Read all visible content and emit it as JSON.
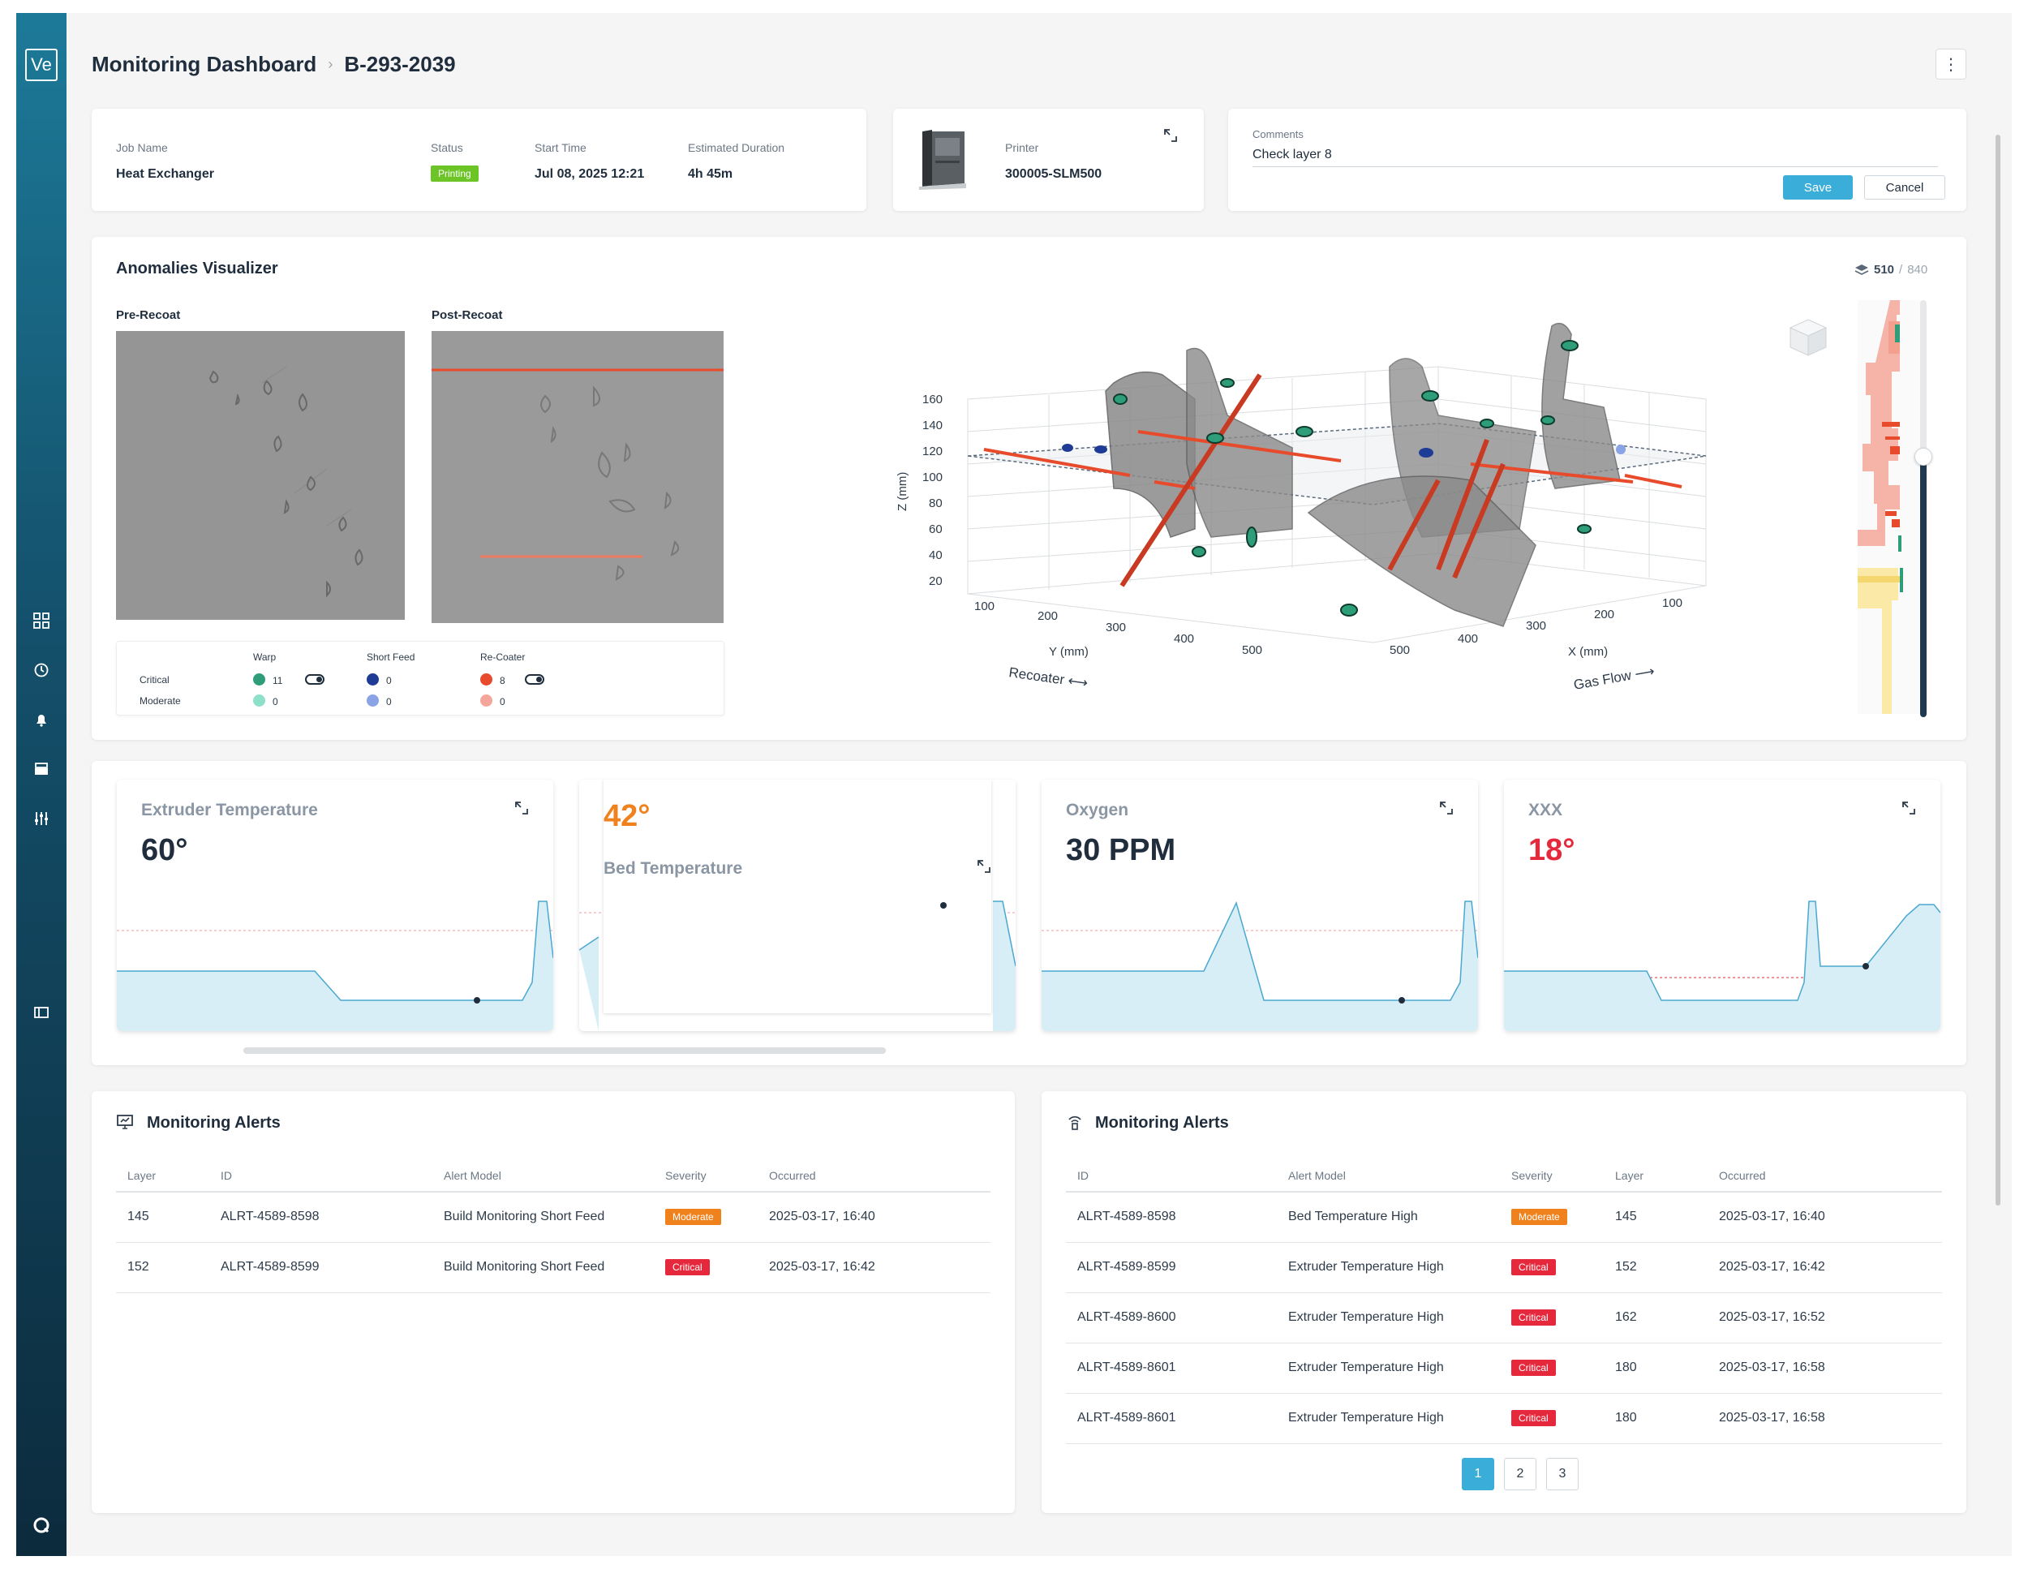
{
  "app": {
    "logo": "Ve"
  },
  "header": {
    "title": "Monitoring Dashboard",
    "separator": "›",
    "job_id": "B-293-2039",
    "more": "⋮"
  },
  "job": {
    "name_label": "Job Name",
    "name": "Heat Exchanger",
    "status_label": "Status",
    "status": "Printing",
    "start_label": "Start Time",
    "start": "Jul 08, 2025 12:21",
    "duration_label": "Estimated Duration",
    "duration": "4h 45m"
  },
  "printer": {
    "label": "Printer",
    "name": "300005-SLM500"
  },
  "comments": {
    "label": "Comments",
    "value": "Check layer 8",
    "save": "Save",
    "cancel": "Cancel"
  },
  "visualizer": {
    "title": "Anomalies Visualizer",
    "layer_current": "510",
    "layer_sep": " / ",
    "layer_total": "840",
    "pre_label": "Pre-Recoat",
    "post_label": "Post-Recoat",
    "legend": {
      "columns": [
        "Warp",
        "Short Feed",
        "Re-Coater"
      ],
      "rows": [
        {
          "label": "Critical",
          "counts": [
            "11",
            "0",
            "8"
          ]
        },
        {
          "label": "Moderate",
          "counts": [
            "0",
            "0",
            "0"
          ]
        }
      ]
    },
    "axes": {
      "z_label": "Z (mm)",
      "z_ticks": [
        "160",
        "140",
        "120",
        "100",
        "80",
        "60",
        "40",
        "20"
      ],
      "y_label": "Y (mm)",
      "y_ticks": [
        "100",
        "200",
        "300",
        "400",
        "500"
      ],
      "x_label": "X (mm)",
      "x_ticks": [
        "500",
        "400",
        "300",
        "200",
        "100"
      ],
      "recoater": "Recoater ⟷",
      "gas_flow": "Gas Flow ⟶"
    }
  },
  "metrics": [
    {
      "label": "Extruder Temperature",
      "value": "60°",
      "color": "#1f2d3d"
    },
    {
      "label": "Bed Temperature",
      "value": "42°",
      "color": "#f0821e"
    },
    {
      "label": "Oxygen",
      "value": "30 PPM",
      "color": "#1f2d3d"
    },
    {
      "label": "XXX",
      "value": "18°",
      "color": "#e6283c"
    }
  ],
  "alerts_left": {
    "title": "Monitoring Alerts",
    "columns": [
      "Layer",
      "ID",
      "Alert Model",
      "Severity",
      "Occurred"
    ],
    "rows": [
      {
        "layer": "145",
        "id": "ALRT-4589-8598",
        "model": "Build Monitoring Short Feed",
        "severity": "Moderate",
        "occurred": "2025-03-17, 16:40"
      },
      {
        "layer": "152",
        "id": "ALRT-4589-8599",
        "model": "Build Monitoring Short Feed",
        "severity": "Critical",
        "occurred": "2025-03-17, 16:42"
      }
    ]
  },
  "alerts_right": {
    "title": "Monitoring Alerts",
    "columns": [
      "ID",
      "Alert Model",
      "Severity",
      "Layer",
      "Occurred"
    ],
    "rows": [
      {
        "id": "ALRT-4589-8598",
        "model": "Bed Temperature High",
        "severity": "Moderate",
        "layer": "145",
        "occurred": "2025-03-17, 16:40"
      },
      {
        "id": "ALRT-4589-8599",
        "model": "Extruder Temperature High",
        "severity": "Critical",
        "layer": "152",
        "occurred": "2025-03-17, 16:42"
      },
      {
        "id": "ALRT-4589-8600",
        "model": "Extruder Temperature High",
        "severity": "Critical",
        "layer": "162",
        "occurred": "2025-03-17, 16:52"
      },
      {
        "id": "ALRT-4589-8601",
        "model": "Extruder Temperature High",
        "severity": "Critical",
        "layer": "180",
        "occurred": "2025-03-17, 16:58"
      },
      {
        "id": "ALRT-4589-8601",
        "model": "Extruder Temperature High",
        "severity": "Critical",
        "layer": "180",
        "occurred": "2025-03-17, 16:58"
      }
    ],
    "pages": [
      "1",
      "2",
      "3"
    ]
  },
  "colors": {
    "accent": "#3aaed8",
    "moderate": "#f0821e",
    "critical": "#e6283c",
    "warp": "#2e9e7a",
    "short_feed": "#1e3c96",
    "recoater": "#e84a2c"
  }
}
